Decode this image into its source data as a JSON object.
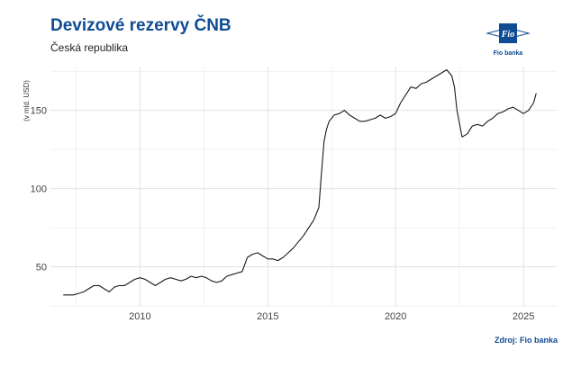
{
  "header": {
    "title": "Devizové rezervy ČNB",
    "subtitle": "Česká republika"
  },
  "logo": {
    "text": "Fio",
    "caption": "Fio banka",
    "colors": {
      "brand": "#0f4c92",
      "accent": "#0f4c92"
    }
  },
  "footer": {
    "source": "Zdroj: Fio banka"
  },
  "chart_data": {
    "type": "line",
    "title": "Devizové rezervy ČNB",
    "subtitle": "Česká republika",
    "xlabel": "",
    "ylabel": "(v mld. USD)",
    "xlim": [
      2006.5,
      2026.3
    ],
    "ylim": [
      25,
      178
    ],
    "x_ticks": [
      2010,
      2015,
      2020,
      2025
    ],
    "x_tick_labels": [
      "2010",
      "2015",
      "2020",
      "2025"
    ],
    "y_ticks": [
      50,
      100,
      150
    ],
    "y_tick_labels": [
      "50",
      "100",
      "150"
    ],
    "grid": true,
    "legend": "none",
    "line_color": "#1a1a1a",
    "series": [
      {
        "x": [
          2007.0,
          2007.2,
          2007.4,
          2007.6,
          2007.8,
          2008.0,
          2008.2,
          2008.4,
          2008.6,
          2008.8,
          2009.0,
          2009.2,
          2009.4,
          2009.6,
          2009.8,
          2010.0,
          2010.2,
          2010.4,
          2010.6,
          2010.8,
          2011.0,
          2011.2,
          2011.4,
          2011.6,
          2011.8,
          2012.0,
          2012.2,
          2012.4,
          2012.6,
          2012.8,
          2013.0,
          2013.2,
          2013.4,
          2013.6,
          2013.8,
          2014.0,
          2014.2,
          2014.4,
          2014.6,
          2014.8,
          2015.0,
          2015.2,
          2015.4,
          2015.6,
          2015.8,
          2016.0,
          2016.2,
          2016.4,
          2016.6,
          2016.8,
          2017.0,
          2017.1,
          2017.2,
          2017.3,
          2017.4,
          2017.6,
          2017.8,
          2018.0,
          2018.2,
          2018.4,
          2018.6,
          2018.8,
          2019.0,
          2019.2,
          2019.4,
          2019.6,
          2019.8,
          2020.0,
          2020.2,
          2020.4,
          2020.6,
          2020.8,
          2021.0,
          2021.2,
          2021.4,
          2021.6,
          2021.8,
          2022.0,
          2022.2,
          2022.3,
          2022.4,
          2022.6,
          2022.8,
          2023.0,
          2023.2,
          2023.4,
          2023.6,
          2023.8,
          2024.0,
          2024.2,
          2024.4,
          2024.6,
          2024.8,
          2025.0,
          2025.2,
          2025.4,
          2025.5
        ],
        "values": [
          32,
          32,
          32,
          33,
          34,
          36,
          38,
          38,
          36,
          34,
          37,
          38,
          38,
          40,
          42,
          43,
          42,
          40,
          38,
          40,
          42,
          43,
          42,
          41,
          42,
          44,
          43,
          44,
          43,
          41,
          40,
          41,
          44,
          45,
          46,
          47,
          56,
          58,
          59,
          57,
          55,
          55,
          54,
          56,
          59,
          62,
          66,
          70,
          75,
          80,
          88,
          110,
          130,
          138,
          143,
          147,
          148,
          150,
          147,
          145,
          143,
          143,
          144,
          145,
          147,
          145,
          146,
          148,
          155,
          160,
          165,
          164,
          167,
          168,
          170,
          172,
          174,
          176,
          172,
          165,
          150,
          133,
          135,
          140,
          141,
          140,
          143,
          145,
          148,
          149,
          151,
          152,
          150,
          148,
          150,
          155,
          161
        ]
      }
    ]
  }
}
